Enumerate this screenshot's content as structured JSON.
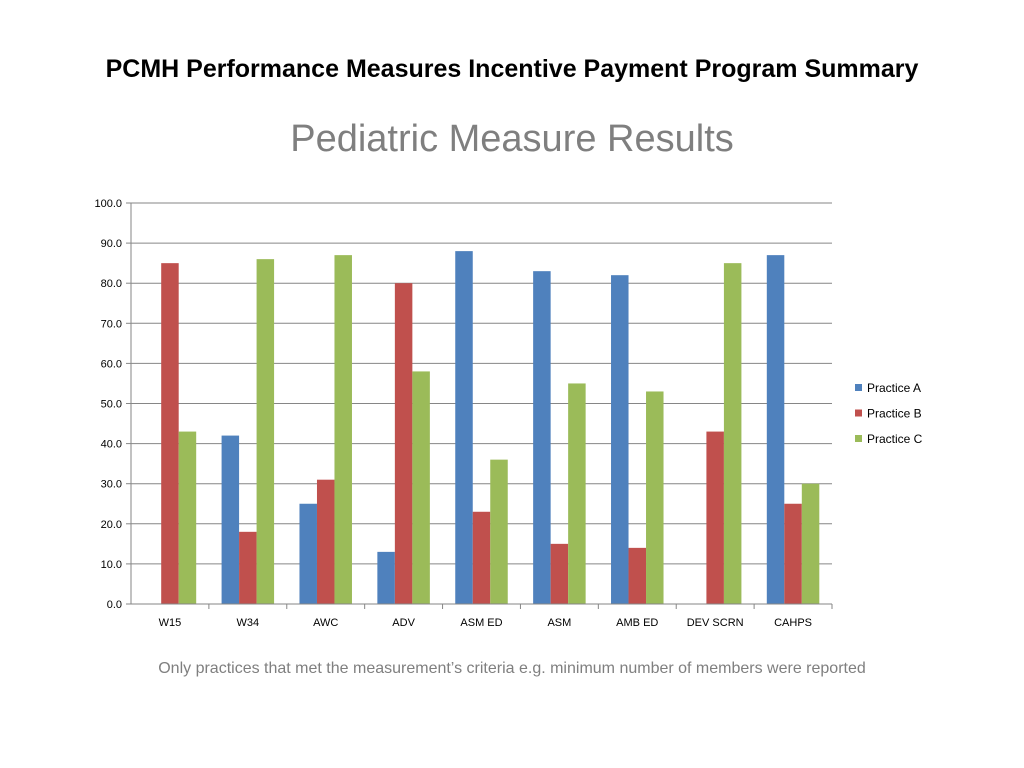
{
  "slide": {
    "heading": "PCMH Performance Measures Incentive Payment Program Summary",
    "footnote": "Only practices that met the measurement’s criteria e.g. minimum number of  members were reported"
  },
  "chart_data": {
    "type": "bar",
    "title": "Pediatric Measure Results",
    "xlabel": "",
    "ylabel": "",
    "ylim": [
      0,
      100
    ],
    "ytick_step": 10,
    "yticks": [
      "0.0",
      "10.0",
      "20.0",
      "30.0",
      "40.0",
      "50.0",
      "60.0",
      "70.0",
      "80.0",
      "90.0",
      "100.0"
    ],
    "grid": true,
    "legend_position": "right",
    "categories": [
      "W15",
      "W34",
      "AWC",
      "ADV",
      "ASM ED",
      "ASM",
      "AMB ED",
      "DEV SCRN",
      "CAHPS"
    ],
    "series": [
      {
        "name": "Practice A",
        "color": "#4f81bd",
        "values": [
          null,
          42,
          25,
          13,
          88,
          83,
          82,
          null,
          87
        ]
      },
      {
        "name": "Practice B",
        "color": "#c0504d",
        "values": [
          85,
          18,
          31,
          80,
          23,
          15,
          14,
          43,
          25
        ]
      },
      {
        "name": "Practice C",
        "color": "#9bbb59",
        "values": [
          43,
          86,
          87,
          58,
          36,
          55,
          53,
          85,
          30
        ]
      }
    ]
  }
}
